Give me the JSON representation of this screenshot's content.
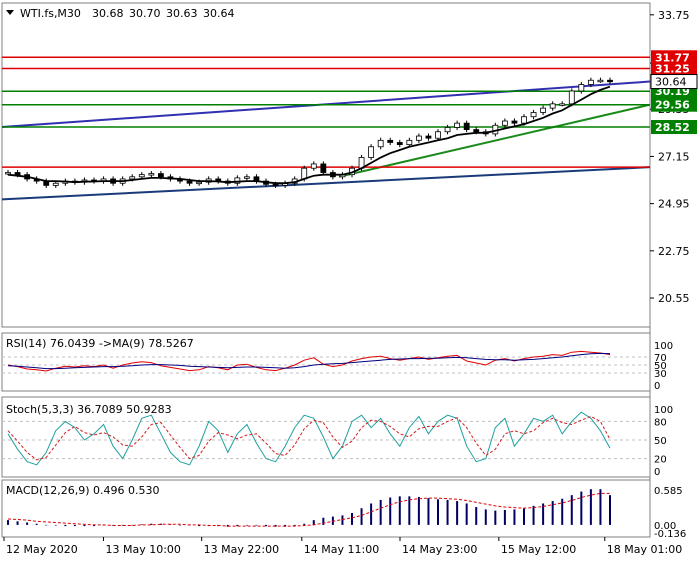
{
  "symbol_header": {
    "symbol": "WTI.fs,M30",
    "values": [
      "30.68",
      "30.70",
      "30.63",
      "30.64"
    ]
  },
  "chart_data": [
    {
      "type": "candlestick",
      "title": "",
      "ylim": [
        19.2,
        34.3
      ],
      "y_ticks": [
        "33.75",
        "31.50",
        "29.35",
        "27.15",
        "24.95",
        "22.75",
        "20.55"
      ],
      "y_tick_values": [
        33.75,
        31.5,
        29.35,
        27.15,
        24.95,
        22.75,
        20.55
      ],
      "price_lines": [
        {
          "value": 31.77,
          "label": "31.77",
          "color": "#e00000"
        },
        {
          "value": 31.25,
          "label": "31.25",
          "color": "#e00000"
        },
        {
          "value": 30.19,
          "label": "30.19",
          "color": "#008000"
        },
        {
          "value": 29.56,
          "label": "29.56",
          "color": "#008000"
        },
        {
          "value": 28.52,
          "label": "28.52",
          "color": "#008000"
        },
        {
          "value": 26.65,
          "label": "",
          "color": "#e00000"
        }
      ],
      "current_price": {
        "value": 30.64,
        "label": "30.64"
      },
      "trendlines": [
        {
          "name": "upper-channel",
          "color": "#3030b0",
          "x": [
            0,
            1
          ],
          "y": [
            28.52,
            30.64
          ]
        },
        {
          "name": "lower-channel",
          "color": "#1a3a7a",
          "x": [
            0,
            1
          ],
          "y": [
            25.15,
            26.65
          ]
        },
        {
          "name": "rising-support",
          "color": "#1a8a1a",
          "x": [
            0.52,
            1
          ],
          "y": [
            26.2,
            29.56
          ]
        }
      ],
      "series_close": [
        26.4,
        26.3,
        26.1,
        26.0,
        25.8,
        25.9,
        26.0,
        25.95,
        26.05,
        26.0,
        26.1,
        25.9,
        26.1,
        26.2,
        26.3,
        26.35,
        26.2,
        26.1,
        26.0,
        25.9,
        25.95,
        26.1,
        26.0,
        25.9,
        26.15,
        26.2,
        26.0,
        25.85,
        25.8,
        25.9,
        26.1,
        26.6,
        26.8,
        26.4,
        26.2,
        26.3,
        26.6,
        27.1,
        27.6,
        27.9,
        27.8,
        27.7,
        27.9,
        28.1,
        28.0,
        28.3,
        28.5,
        28.7,
        28.4,
        28.3,
        28.2,
        28.6,
        28.8,
        28.7,
        29.0,
        29.2,
        29.4,
        29.6,
        29.6,
        30.2,
        30.5,
        30.7,
        30.7,
        30.64
      ],
      "series_ma": [
        26.3,
        26.25,
        26.2,
        26.1,
        26.0,
        26.0,
        25.98,
        25.95,
        25.97,
        25.98,
        26.0,
        26.0,
        26.0,
        26.05,
        26.1,
        26.15,
        26.15,
        26.12,
        26.1,
        26.05,
        26.0,
        26.0,
        25.98,
        25.95,
        25.97,
        26.0,
        26.0,
        25.95,
        25.9,
        25.9,
        25.95,
        26.1,
        26.25,
        26.3,
        26.3,
        26.3,
        26.4,
        26.6,
        26.85,
        27.1,
        27.3,
        27.45,
        27.6,
        27.7,
        27.8,
        27.9,
        28.0,
        28.15,
        28.2,
        28.25,
        28.25,
        28.35,
        28.45,
        28.55,
        28.65,
        28.8,
        28.95,
        29.15,
        29.3,
        29.55,
        29.8,
        30.05,
        30.25,
        30.4
      ]
    },
    {
      "type": "line",
      "title": "RSI(14) 76.0439 ->MA(9) 78.5267",
      "ylim": [
        0,
        100
      ],
      "y_ticks": [
        "100",
        "70",
        "50",
        "30",
        "0"
      ],
      "y_tick_values": [
        100,
        70,
        50,
        30,
        0
      ],
      "levels": [
        70,
        50,
        30
      ],
      "series": [
        {
          "name": "RSI(14)",
          "color": "#e00000",
          "values": [
            50,
            46,
            40,
            38,
            35,
            42,
            47,
            45,
            48,
            46,
            50,
            42,
            50,
            55,
            58,
            56,
            48,
            44,
            40,
            36,
            38,
            46,
            43,
            38,
            50,
            52,
            44,
            38,
            36,
            42,
            50,
            62,
            68,
            52,
            46,
            50,
            60,
            66,
            70,
            72,
            66,
            62,
            66,
            70,
            64,
            68,
            72,
            74,
            60,
            55,
            50,
            62,
            66,
            60,
            66,
            70,
            72,
            76,
            74,
            82,
            84,
            82,
            80,
            76
          ]
        },
        {
          "name": "MA(9)",
          "color": "#000080",
          "values": [
            48,
            47,
            45,
            43,
            41,
            41,
            42,
            43,
            44,
            45,
            46,
            46,
            47,
            48,
            50,
            51,
            51,
            50,
            49,
            47,
            46,
            45,
            44,
            43,
            44,
            45,
            45,
            44,
            43,
            42,
            43,
            46,
            50,
            52,
            53,
            54,
            56,
            58,
            60,
            62,
            64,
            65,
            66,
            66,
            67,
            67,
            68,
            69,
            68,
            66,
            64,
            63,
            63,
            62,
            63,
            64,
            66,
            68,
            70,
            73,
            76,
            78,
            79,
            78.5
          ]
        }
      ]
    },
    {
      "type": "line",
      "title": "Stoch(5,3,3) 36.7089 50.9283",
      "ylim": [
        0,
        100
      ],
      "y_ticks": [
        "100",
        "80",
        "50",
        "20",
        "0"
      ],
      "y_tick_values": [
        100,
        80,
        50,
        20,
        0
      ],
      "levels": [
        80,
        50,
        20
      ],
      "series": [
        {
          "name": "%K",
          "color": "#20a0a0",
          "values": [
            60,
            35,
            15,
            10,
            30,
            65,
            80,
            70,
            50,
            60,
            75,
            40,
            20,
            50,
            85,
            90,
            60,
            30,
            15,
            10,
            40,
            80,
            65,
            30,
            60,
            75,
            45,
            20,
            15,
            40,
            70,
            90,
            85,
            55,
            20,
            40,
            80,
            90,
            70,
            85,
            60,
            40,
            70,
            88,
            60,
            80,
            90,
            85,
            40,
            15,
            20,
            70,
            85,
            40,
            60,
            85,
            80,
            90,
            60,
            80,
            95,
            85,
            65,
            37
          ]
        },
        {
          "name": "%D",
          "color": "#d02020",
          "values": [
            65,
            48,
            30,
            18,
            22,
            42,
            62,
            72,
            62,
            58,
            62,
            55,
            42,
            40,
            55,
            75,
            78,
            58,
            38,
            20,
            25,
            48,
            62,
            58,
            52,
            58,
            60,
            45,
            28,
            25,
            42,
            68,
            82,
            78,
            55,
            38,
            48,
            70,
            82,
            80,
            72,
            60,
            55,
            68,
            72,
            72,
            80,
            86,
            70,
            45,
            25,
            35,
            60,
            65,
            60,
            65,
            78,
            85,
            78,
            75,
            82,
            88,
            80,
            51
          ]
        }
      ]
    },
    {
      "type": "bar",
      "title": "MACD(12,26,9) 0.496 0.530",
      "ylim": [
        -0.136,
        0.62
      ],
      "y_ticks": [
        "0.585",
        "0.00",
        "-0.136"
      ],
      "y_tick_values": [
        0.585,
        0.0,
        -0.136
      ],
      "series": [
        {
          "name": "MACD",
          "color": "#000060",
          "values": [
            0.08,
            0.06,
            0.04,
            0.02,
            0.0,
            -0.01,
            -0.02,
            -0.02,
            -0.02,
            -0.02,
            -0.01,
            -0.01,
            -0.01,
            0.0,
            0.01,
            0.02,
            0.02,
            0.01,
            0.0,
            -0.01,
            -0.02,
            -0.02,
            -0.02,
            -0.03,
            -0.02,
            -0.01,
            -0.01,
            -0.02,
            -0.03,
            -0.03,
            -0.02,
            0.02,
            0.08,
            0.12,
            0.14,
            0.16,
            0.2,
            0.28,
            0.36,
            0.42,
            0.46,
            0.48,
            0.48,
            0.47,
            0.45,
            0.43,
            0.42,
            0.4,
            0.36,
            0.3,
            0.26,
            0.24,
            0.25,
            0.26,
            0.28,
            0.32,
            0.36,
            0.4,
            0.44,
            0.5,
            0.56,
            0.6,
            0.6,
            0.5
          ]
        },
        {
          "name": "Signal",
          "color": "#e00000",
          "values": [
            0.1,
            0.09,
            0.08,
            0.06,
            0.05,
            0.04,
            0.03,
            0.02,
            0.01,
            0.0,
            0.0,
            -0.01,
            -0.01,
            -0.01,
            0.0,
            0.0,
            0.01,
            0.01,
            0.01,
            0.0,
            0.0,
            -0.01,
            -0.01,
            -0.02,
            -0.02,
            -0.02,
            -0.02,
            -0.02,
            -0.02,
            -0.02,
            -0.02,
            -0.01,
            0.0,
            0.03,
            0.06,
            0.09,
            0.12,
            0.16,
            0.22,
            0.28,
            0.34,
            0.39,
            0.42,
            0.44,
            0.45,
            0.45,
            0.44,
            0.43,
            0.41,
            0.38,
            0.35,
            0.32,
            0.3,
            0.29,
            0.28,
            0.29,
            0.31,
            0.34,
            0.37,
            0.41,
            0.46,
            0.5,
            0.53,
            0.53
          ]
        }
      ]
    }
  ],
  "time_axis": {
    "labels": [
      "12 May 2020",
      "13 May 10:00",
      "13 May 22:00",
      "14 May 11:00",
      "14 May 23:00",
      "15 May 12:00",
      "18 May 01:00"
    ],
    "positions": [
      0.0,
      0.154,
      0.306,
      0.461,
      0.613,
      0.766,
      0.93
    ]
  },
  "colors": {
    "candle": "#000000",
    "ma": "#000000",
    "label_red_bg": "#e00000",
    "label_green_bg": "#008000",
    "label_current_bg": "#ffffff",
    "grid_dash": "#c0c0c0",
    "frame": "#808080"
  }
}
